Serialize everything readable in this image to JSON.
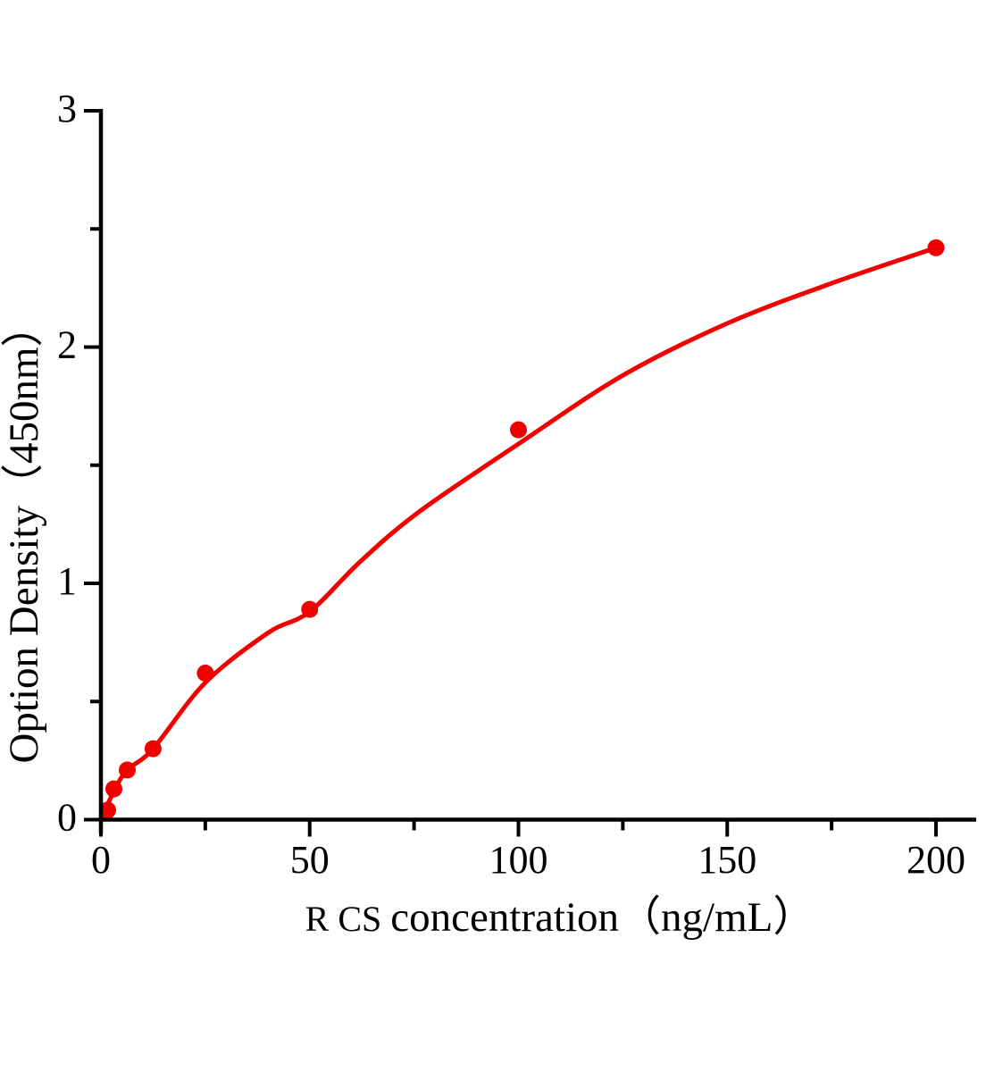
{
  "figure": {
    "background": "#ffffff",
    "axis_color": "#000000",
    "accent_red": "#f20000"
  },
  "chart_data": {
    "type": "scatter",
    "title": "",
    "xlabel_prefix": "R CS ",
    "xlabel_rest": "concentration（ng/mL）",
    "ylabel": "Option Density（450nm）",
    "xlim": [
      0,
      209.6
    ],
    "ylim": [
      0,
      3.01
    ],
    "grid": false,
    "legend_position": "none",
    "x_major_ticks": [
      0,
      50,
      100,
      150,
      200
    ],
    "x_minor_ticks": [
      25,
      75,
      125,
      175
    ],
    "y_major_ticks": [
      0,
      1,
      2,
      3
    ],
    "y_minor_ticks": [
      0.5,
      1.5,
      2.5
    ],
    "series": [
      {
        "name": "standard-points",
        "type": "scatter",
        "color": "#f20000",
        "x": [
          1.6,
          3.1,
          6.3,
          12.5,
          25,
          50,
          100,
          200
        ],
        "y": [
          0.04,
          0.13,
          0.21,
          0.3,
          0.62,
          0.89,
          1.65,
          2.42
        ]
      },
      {
        "name": "fit-curve",
        "type": "line",
        "color": "#f20000",
        "points": [
          [
            0,
            0
          ],
          [
            3.1,
            0.12
          ],
          [
            6.3,
            0.21
          ],
          [
            12.5,
            0.3
          ],
          [
            25,
            0.58
          ],
          [
            40,
            0.79
          ],
          [
            50,
            0.88
          ],
          [
            62,
            1.09
          ],
          [
            76,
            1.3
          ],
          [
            100,
            1.59
          ],
          [
            125,
            1.88
          ],
          [
            150,
            2.1
          ],
          [
            175,
            2.27
          ],
          [
            200,
            2.42
          ]
        ]
      }
    ]
  }
}
